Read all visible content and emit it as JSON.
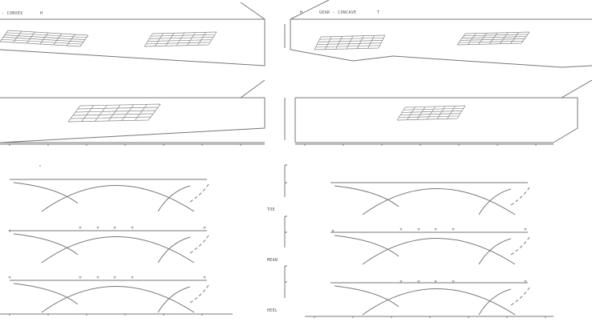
{
  "left_panel": {
    "title": "- CONVEX",
    "marker": "H"
  },
  "right_panel": {
    "marker_left": "H",
    "title": "GEAR - CONCAVE",
    "marker_right": "T"
  },
  "profile_labels": {
    "toe": "TOE",
    "mean": "MEAN",
    "heel": "HEEL"
  }
}
